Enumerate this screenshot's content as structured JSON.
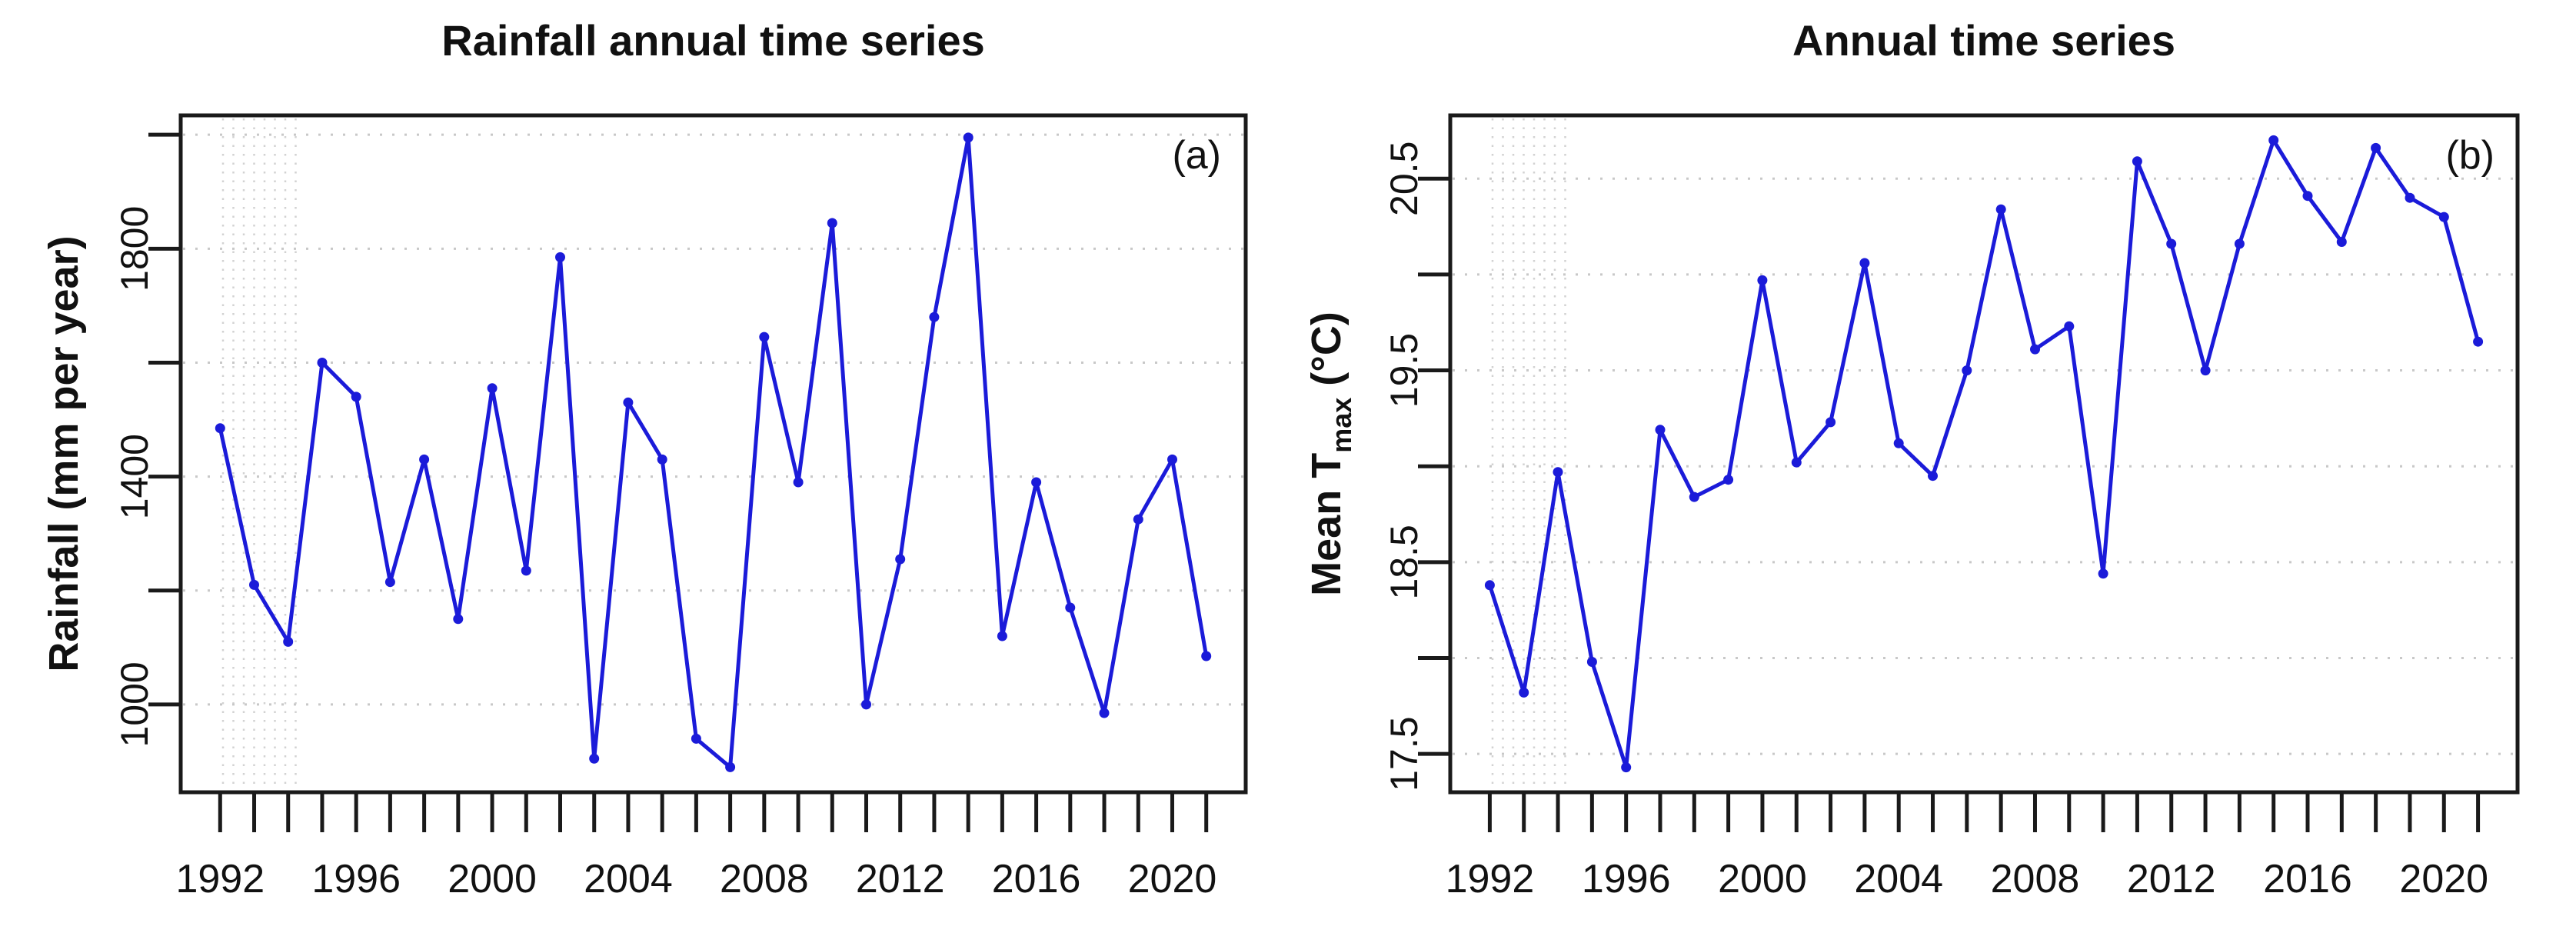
{
  "figure": {
    "background_color": "#ffffff",
    "line_color": "#1b1bd9",
    "grid_color": "#c8c8c8",
    "band_color": "#d2d2d2",
    "axis_color": "#1a1a1a",
    "text_color": "#111111"
  },
  "panels": [
    {
      "title": "Rainfall annual time series",
      "ylabel": {
        "main": "Rainfall (mm per year)",
        "sub": "",
        "tail": ""
      },
      "panel_label": "(a)"
    },
    {
      "title": "Annual time series",
      "ylabel": {
        "main": "Mean T",
        "sub": "max",
        "tail": " (°C)"
      },
      "panel_label": "(b)"
    }
  ],
  "chart_data": [
    {
      "type": "line",
      "title": "Rainfall annual time series",
      "xlabel": "",
      "ylabel": "Rainfall (mm per year)",
      "annotation": "(a)",
      "legend": "none",
      "grid": "dotted horizontal gridlines at every y tick",
      "marker": "small filled point",
      "series_color_name": "blue",
      "x": [
        1992,
        1993,
        1994,
        1995,
        1996,
        1997,
        1998,
        1999,
        2000,
        2001,
        2002,
        2003,
        2004,
        2005,
        2006,
        2007,
        2008,
        2009,
        2010,
        2011,
        2012,
        2013,
        2014,
        2015,
        2016,
        2017,
        2018,
        2019,
        2020,
        2021
      ],
      "values": [
        1485,
        1210,
        1110,
        1600,
        1540,
        1215,
        1430,
        1150,
        1555,
        1235,
        1785,
        905,
        1530,
        1430,
        940,
        890,
        1645,
        1390,
        1845,
        1000,
        1255,
        1680,
        1995,
        1120,
        1390,
        1170,
        985,
        1325,
        1430,
        1085
      ],
      "xlim": [
        1990.84,
        2022.16
      ],
      "ylim": [
        846,
        2034
      ],
      "xticks_all": [
        1992,
        1993,
        1994,
        1995,
        1996,
        1997,
        1998,
        1999,
        2000,
        2001,
        2002,
        2003,
        2004,
        2005,
        2006,
        2007,
        2008,
        2009,
        2010,
        2011,
        2012,
        2013,
        2014,
        2015,
        2016,
        2017,
        2018,
        2019,
        2020,
        2021
      ],
      "xticks_labeled": [
        1992,
        1996,
        2000,
        2004,
        2008,
        2012,
        2016,
        2020
      ],
      "xtick_label_text": [
        "1992",
        "1996",
        "2000",
        "2004",
        "2008",
        "2012",
        "2016",
        "2020"
      ],
      "yticks_all": [
        1000,
        1200,
        1400,
        1600,
        1800,
        2000
      ],
      "yticks_labeled": [
        1000,
        1400,
        1800
      ],
      "ytick_label_text": [
        "1000",
        "1400",
        "1800"
      ]
    },
    {
      "type": "line",
      "title": "Annual time series",
      "xlabel": "",
      "ylabel": "Mean Tmax (°C)",
      "annotation": "(b)",
      "legend": "none",
      "grid": "dotted horizontal gridlines at every y tick",
      "marker": "small filled point",
      "series_color_name": "blue",
      "x": [
        1992,
        1993,
        1994,
        1995,
        1996,
        1997,
        1998,
        1999,
        2000,
        2001,
        2002,
        2003,
        2004,
        2005,
        2006,
        2007,
        2008,
        2009,
        2010,
        2011,
        2012,
        2013,
        2014,
        2015,
        2016,
        2017,
        2018,
        2019,
        2020,
        2021
      ],
      "values": [
        18.38,
        17.82,
        18.97,
        17.98,
        17.43,
        19.19,
        18.84,
        18.93,
        19.97,
        19.02,
        19.23,
        20.06,
        19.12,
        18.95,
        19.5,
        20.34,
        19.61,
        19.73,
        18.44,
        20.59,
        20.16,
        19.5,
        20.16,
        20.7,
        20.41,
        20.17,
        20.66,
        20.4,
        20.3,
        19.65
      ],
      "xlim": [
        1990.84,
        2022.16
      ],
      "ylim": [
        17.3,
        20.83
      ],
      "xticks_all": [
        1992,
        1993,
        1994,
        1995,
        1996,
        1997,
        1998,
        1999,
        2000,
        2001,
        2002,
        2003,
        2004,
        2005,
        2006,
        2007,
        2008,
        2009,
        2010,
        2011,
        2012,
        2013,
        2014,
        2015,
        2016,
        2017,
        2018,
        2019,
        2020,
        2021
      ],
      "xticks_labeled": [
        1992,
        1996,
        2000,
        2004,
        2008,
        2012,
        2016,
        2020
      ],
      "xtick_label_text": [
        "1992",
        "1996",
        "2000",
        "2004",
        "2008",
        "2012",
        "2016",
        "2020"
      ],
      "yticks_all": [
        17.5,
        18.0,
        18.5,
        19.0,
        19.5,
        20.0,
        20.5
      ],
      "yticks_labeled": [
        17.5,
        18.5,
        19.5,
        20.5
      ],
      "ytick_label_text": [
        "17.5",
        "18.5",
        "19.5",
        "20.5"
      ]
    }
  ]
}
